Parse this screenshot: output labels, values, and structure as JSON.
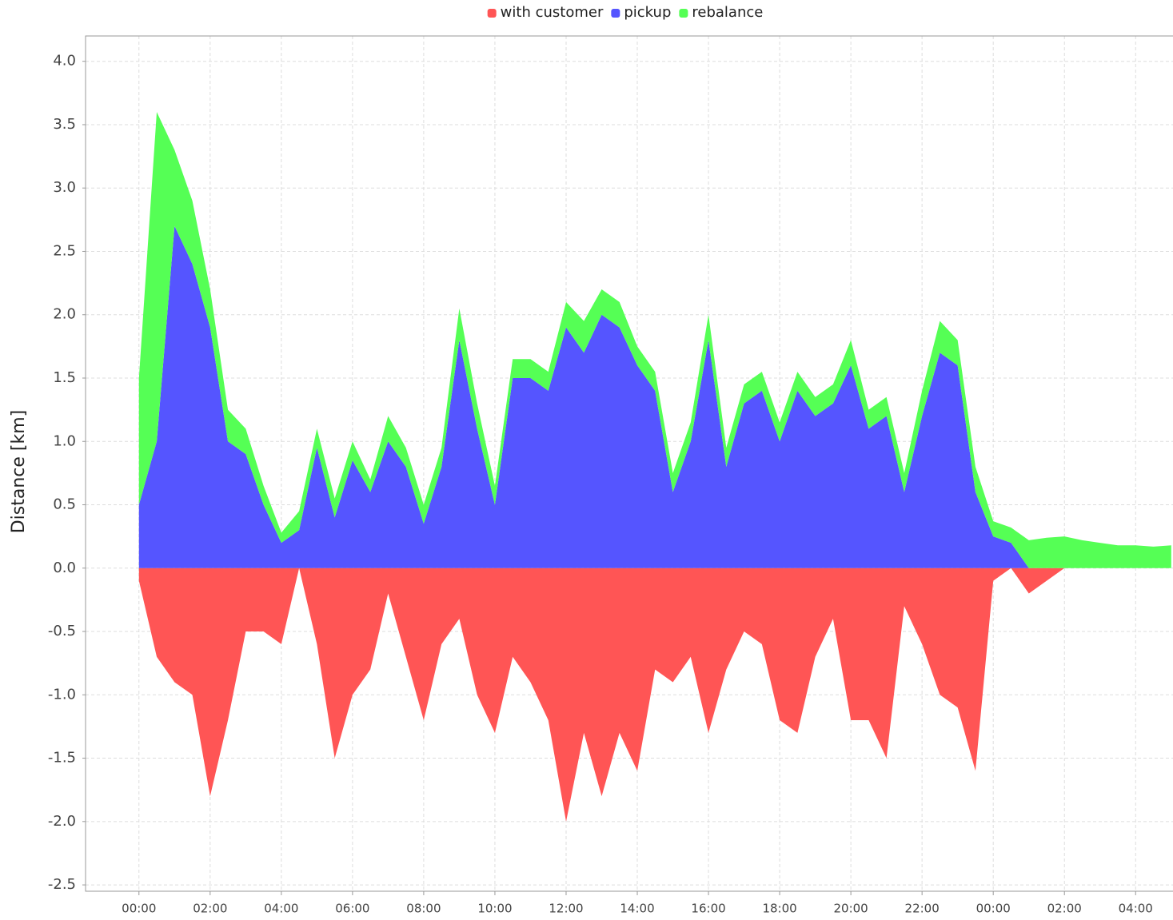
{
  "chart_data": {
    "type": "stacked-area",
    "y_label": "Distance [km]",
    "legend": "top",
    "grid": true,
    "x": [
      0,
      0.5,
      1,
      1.5,
      2,
      2.5,
      3,
      3.5,
      4,
      4.5,
      5,
      5.5,
      6,
      6.5,
      7,
      7.5,
      8,
      8.5,
      9,
      9.5,
      10,
      10.5,
      11,
      11.5,
      12,
      12.5,
      13,
      13.5,
      14,
      14.5,
      15,
      15.5,
      16,
      16.5,
      17,
      17.5,
      18,
      18.5,
      19,
      19.5,
      20,
      20.5,
      21,
      21.5,
      22,
      22.5,
      23,
      23.5,
      24,
      24.5,
      25,
      25.5,
      26,
      26.5,
      27,
      27.5,
      28,
      28.5,
      29
    ],
    "series": [
      {
        "name": "with customer",
        "color": "#ff5555",
        "values": [
          -0.1,
          -0.7,
          -0.9,
          -1.0,
          -1.8,
          -1.2,
          -0.5,
          -0.5,
          -0.6,
          0,
          -0.6,
          -1.5,
          -1.0,
          -0.8,
          -0.2,
          -0.7,
          -1.2,
          -0.6,
          -0.4,
          -1.0,
          -1.3,
          -0.7,
          -0.9,
          -1.2,
          -2.0,
          -1.3,
          -1.8,
          -1.3,
          -1.6,
          -0.8,
          -0.9,
          -0.7,
          -1.3,
          -0.8,
          -0.5,
          -0.6,
          -1.2,
          -1.3,
          -0.7,
          -0.4,
          -1.2,
          -1.2,
          -1.5,
          -0.3,
          -0.6,
          -1.0,
          -1.1,
          -1.6,
          -0.1,
          0,
          -0.2,
          -0.1,
          0,
          0,
          0,
          0,
          0,
          0,
          0
        ]
      },
      {
        "name": "pickup",
        "color": "#5555ff",
        "values": [
          0.5,
          1.0,
          2.7,
          2.4,
          1.9,
          1.0,
          0.9,
          0.5,
          0.2,
          0.3,
          0.95,
          0.4,
          0.85,
          0.6,
          1.0,
          0.8,
          0.35,
          0.8,
          1.8,
          1.1,
          0.5,
          1.5,
          1.5,
          1.4,
          1.9,
          1.7,
          2.0,
          1.9,
          1.6,
          1.4,
          0.6,
          1.0,
          1.8,
          0.8,
          1.3,
          1.4,
          1.0,
          1.4,
          1.2,
          1.3,
          1.6,
          1.1,
          1.2,
          0.6,
          1.2,
          1.7,
          1.6,
          0.6,
          0.25,
          0.2,
          0,
          0,
          0,
          0,
          0,
          0,
          0,
          0,
          0
        ]
      },
      {
        "name": "rebalance",
        "color": "#55ff55",
        "values": [
          1.0,
          2.6,
          0.6,
          0.5,
          0.3,
          0.25,
          0.2,
          0.15,
          0.08,
          0.15,
          0.15,
          0.15,
          0.15,
          0.1,
          0.2,
          0.15,
          0.15,
          0.15,
          0.25,
          0.2,
          0.15,
          0.15,
          0.15,
          0.15,
          0.2,
          0.25,
          0.2,
          0.2,
          0.15,
          0.15,
          0.15,
          0.15,
          0.2,
          0.15,
          0.15,
          0.15,
          0.15,
          0.15,
          0.15,
          0.15,
          0.2,
          0.15,
          0.15,
          0.15,
          0.2,
          0.25,
          0.2,
          0.2,
          0.12,
          0.12,
          0.22,
          0.24,
          0.25,
          0.22,
          0.2,
          0.18,
          0.18,
          0.17,
          0.18
        ]
      }
    ],
    "xlim": [
      -1.5,
      29.05
    ],
    "xticks": [
      {
        "value": 0,
        "label": "00:00"
      },
      {
        "value": 2,
        "label": "02:00"
      },
      {
        "value": 4,
        "label": "04:00"
      },
      {
        "value": 6,
        "label": "06:00"
      },
      {
        "value": 8,
        "label": "08:00"
      },
      {
        "value": 10,
        "label": "10:00"
      },
      {
        "value": 12,
        "label": "12:00"
      },
      {
        "value": 14,
        "label": "14:00"
      },
      {
        "value": 16,
        "label": "16:00"
      },
      {
        "value": 18,
        "label": "18:00"
      },
      {
        "value": 20,
        "label": "20:00"
      },
      {
        "value": 22,
        "label": "22:00"
      },
      {
        "value": 24,
        "label": "00:00"
      },
      {
        "value": 26,
        "label": "02:00"
      },
      {
        "value": 28,
        "label": "04:00"
      }
    ],
    "ylim": [
      -2.55,
      4.2
    ],
    "yticks": [
      -2.5,
      {
        "value": -2,
        "label": "-2.0"
      },
      -1.5,
      {
        "value": -1,
        "label": "-1.0"
      },
      -0.5,
      {
        "value": 0,
        "label": "0.0"
      },
      0.5,
      {
        "value": 1,
        "label": "1.0"
      },
      1.5,
      {
        "value": 2,
        "label": "2.0"
      },
      2.5,
      {
        "value": 3,
        "label": "3.0"
      },
      3.5,
      {
        "value": 4,
        "label": "4.0"
      }
    ]
  }
}
